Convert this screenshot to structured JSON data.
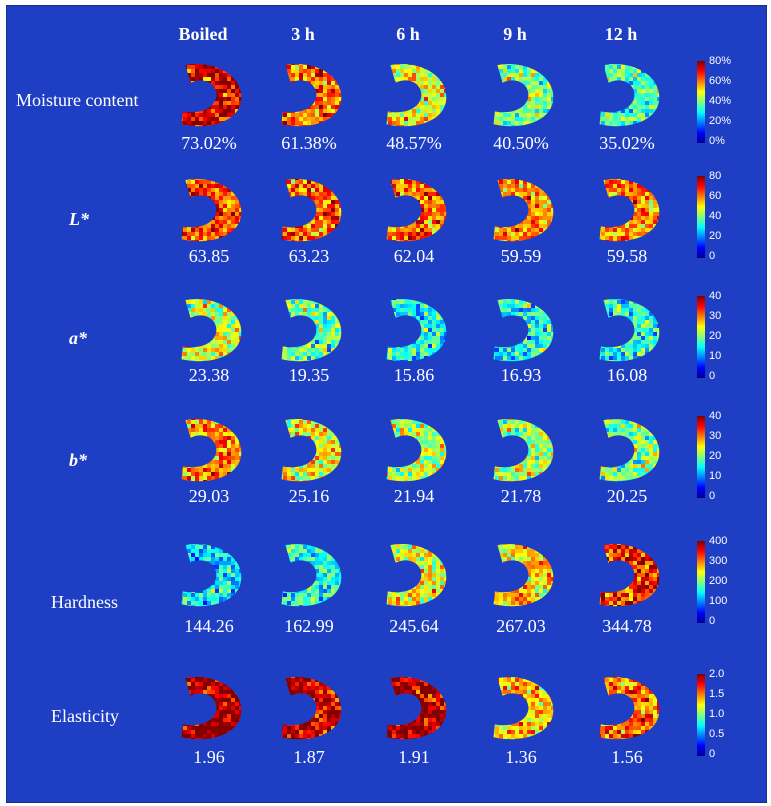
{
  "columns": [
    "Boiled",
    "3 h",
    "6 h",
    "9 h",
    "12 h"
  ],
  "rows": [
    {
      "label": "Moisture content",
      "italic": false,
      "values": [
        "73.02%",
        "61.38%",
        "48.57%",
        "40.50%",
        "35.02%"
      ],
      "levels": [
        0.91,
        0.77,
        0.61,
        0.51,
        0.44
      ],
      "ticks": [
        "80%",
        "60%",
        "40%",
        "20%",
        "0%"
      ]
    },
    {
      "label": "L*",
      "italic": true,
      "values": [
        "63.85",
        "63.23",
        "62.04",
        "59.59",
        "59.58"
      ],
      "levels": [
        0.8,
        0.79,
        0.78,
        0.74,
        0.74
      ],
      "ticks": [
        "80",
        "60",
        "40",
        "20",
        "0"
      ]
    },
    {
      "label": "a*",
      "italic": true,
      "values": [
        "23.38",
        "19.35",
        "15.86",
        "16.93",
        "16.08"
      ],
      "levels": [
        0.58,
        0.48,
        0.4,
        0.42,
        0.4
      ],
      "ticks": [
        "40",
        "30",
        "20",
        "10",
        "0"
      ]
    },
    {
      "label": "b*",
      "italic": true,
      "values": [
        "29.03",
        "25.16",
        "21.94",
        "21.78",
        "20.25"
      ],
      "levels": [
        0.73,
        0.63,
        0.55,
        0.54,
        0.51
      ],
      "ticks": [
        "40",
        "30",
        "20",
        "10",
        "0"
      ]
    },
    {
      "label": "Hardness",
      "italic": false,
      "values": [
        "144.26",
        "162.99",
        "245.64",
        "267.03",
        "344.78"
      ],
      "levels": [
        0.36,
        0.41,
        0.61,
        0.67,
        0.86
      ],
      "ticks": [
        "400",
        "300",
        "200",
        "100",
        "0"
      ]
    },
    {
      "label": "Elasticity",
      "italic": false,
      "values": [
        "1.96",
        "1.87",
        "1.91",
        "1.36",
        "1.56"
      ],
      "levels": [
        0.98,
        0.94,
        0.96,
        0.68,
        0.78
      ],
      "ticks": [
        "2.0",
        "1.5",
        "1.0",
        "0.5",
        "0"
      ]
    }
  ],
  "colormap": [
    "#00008f",
    "#0000ff",
    "#0080ff",
    "#00ffff",
    "#80ff80",
    "#ffff00",
    "#ff8000",
    "#ff0000",
    "#800000"
  ]
}
